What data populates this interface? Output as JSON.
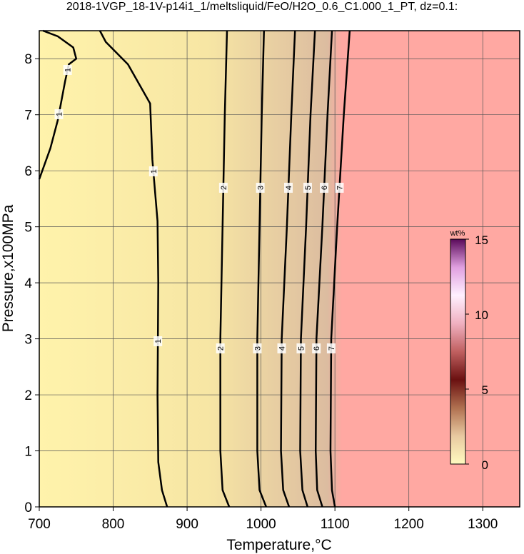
{
  "chart_data": {
    "type": "contour",
    "title": "2018-1VGP_18-1V-p14i1_1/meltsliquid/FeO/H2O_0.6_C1.000_1_PT, dz=0.1:",
    "xlabel": "Temperature,°C",
    "ylabel": "Pressure,x100MPa",
    "xlim": [
      700,
      1350
    ],
    "ylim": [
      0,
      8.5
    ],
    "xticks": [
      700,
      800,
      900,
      1000,
      1100,
      1200,
      1300
    ],
    "yticks": [
      0,
      1,
      2,
      3,
      4,
      5,
      6,
      7,
      8
    ],
    "grid": true,
    "contours": [
      {
        "level": 1,
        "x": [
          700,
          715,
          725,
          735,
          740,
          750,
          746,
          725,
          705
        ],
        "y": [
          5.85,
          6.4,
          6.9,
          7.6,
          7.9,
          8.0,
          8.2,
          8.4,
          8.5
        ]
      },
      {
        "level": 1,
        "x": [
          782,
          790,
          820,
          850,
          853,
          860,
          861,
          860,
          861,
          866,
          873
        ],
        "y": [
          8.5,
          8.3,
          7.9,
          7.2,
          6.2,
          5.1,
          4,
          2,
          0.8,
          0.3,
          0
        ]
      },
      {
        "level": 2,
        "x": [
          957,
          948,
          945,
          945,
          948,
          951,
          954
        ],
        "y": [
          0,
          0.3,
          1,
          3,
          5,
          7,
          8.5
        ]
      },
      {
        "level": 3,
        "x": [
          1007,
          998,
          995,
          995,
          998,
          1001,
          1004
        ],
        "y": [
          0,
          0.3,
          1,
          3,
          5,
          7,
          8.5
        ]
      },
      {
        "level": 4,
        "x": [
          1038,
          1030,
          1027,
          1028,
          1035,
          1041,
          1046
        ],
        "y": [
          0,
          0.3,
          1,
          3,
          5,
          7,
          8.5
        ]
      },
      {
        "level": 5,
        "x": [
          1063,
          1056,
          1053,
          1054,
          1061,
          1067,
          1073
        ],
        "y": [
          0,
          0.3,
          1,
          3,
          5,
          7,
          8.5
        ]
      },
      {
        "level": 6,
        "x": [
          1083,
          1076,
          1074,
          1075,
          1083,
          1090,
          1096
        ],
        "y": [
          0,
          0.3,
          1,
          3,
          5,
          7,
          8.5
        ]
      },
      {
        "level": 7,
        "x": [
          1100,
          1096,
          1094,
          1095,
          1103,
          1112,
          1120
        ],
        "y": [
          0,
          0.3,
          1,
          3,
          5,
          7,
          8.5
        ]
      }
    ],
    "colorbar": {
      "label": "wt%",
      "lim": [
        0,
        15
      ],
      "ticks": [
        0,
        5,
        10,
        15
      ],
      "colors": [
        "#fffbc0",
        "#e8c9a0",
        "#b07050",
        "#6a1010",
        "#c06060",
        "#f0b0c0",
        "#fff0ff",
        "#e0a0e0",
        "#5a0a5a"
      ]
    }
  }
}
